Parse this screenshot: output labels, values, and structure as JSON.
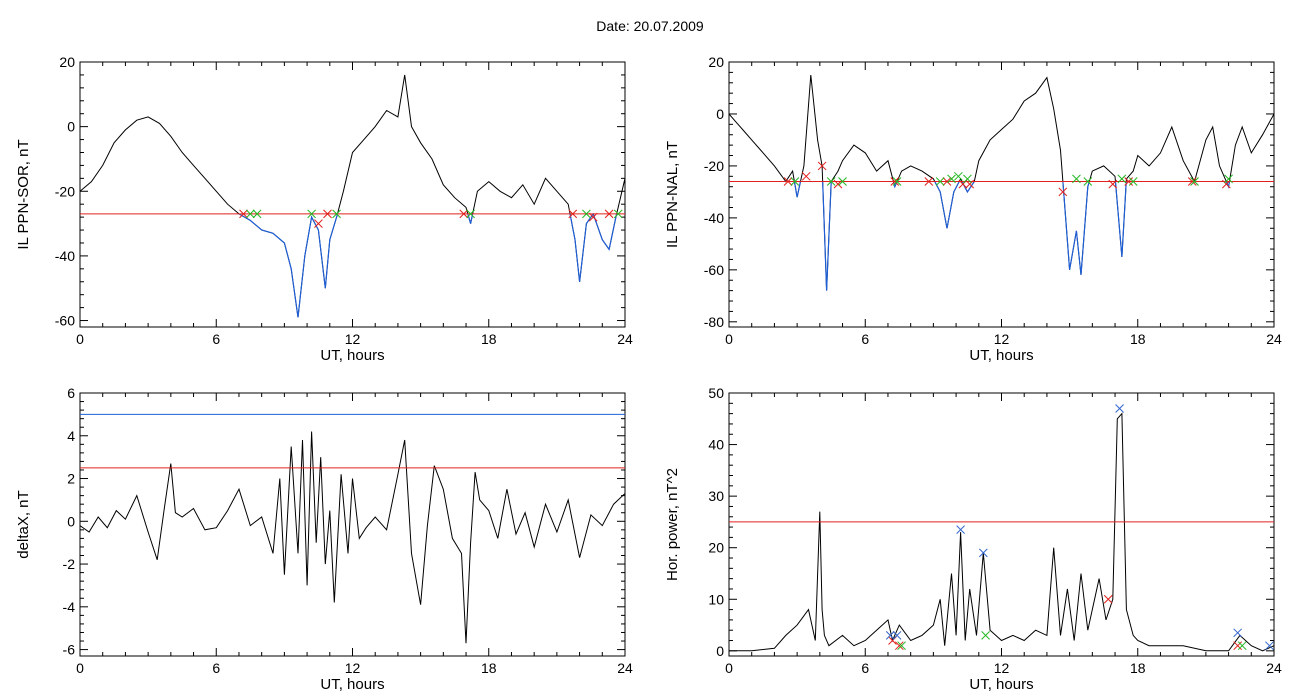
{
  "header": {
    "date_label": "Date:  20.07.2009"
  },
  "colors": {
    "trace": "#000000",
    "below": "#1f5fd6",
    "threshold_red": "#e0201c",
    "threshold_blue": "#1f5fd6",
    "marker_red": "#e0201c",
    "marker_green": "#22b822",
    "marker_blue": "#3366cc"
  },
  "chart_data": [
    {
      "id": "il-ppn-sor",
      "type": "line",
      "xlabel": "UT, hours",
      "ylabel": "IL PPN-SOR, nT",
      "xlim": [
        0,
        24
      ],
      "ylim": [
        -62,
        20
      ],
      "xticks": [
        0,
        6,
        12,
        18,
        24
      ],
      "yticks": [
        -60,
        -40,
        -20,
        0,
        20
      ],
      "threshold_red": -27,
      "series": [
        {
          "x": [
            0,
            0.5,
            1,
            1.5,
            2,
            2.5,
            3,
            3.5,
            4,
            4.5,
            5,
            5.5,
            6,
            6.5,
            7,
            7.5,
            8,
            8.5,
            9,
            9.3,
            9.6,
            9.9,
            10.2,
            10.5,
            10.8,
            11,
            11.3,
            11.6,
            12,
            12.5,
            13,
            13.5,
            14,
            14.3,
            14.6,
            15,
            15.5,
            16,
            16.5,
            17,
            17.2,
            17.5,
            18,
            18.5,
            19,
            19.5,
            20,
            20.5,
            21,
            21.5,
            21.8,
            22,
            22.3,
            22.6,
            23,
            23.3,
            23.6,
            24
          ],
          "y": [
            -20,
            -17,
            -12,
            -5,
            -1,
            2,
            3,
            1,
            -3,
            -8,
            -12,
            -16,
            -20,
            -24,
            -27,
            -29,
            -32,
            -33,
            -36,
            -44,
            -59,
            -40,
            -28,
            -32,
            -50,
            -35,
            -28,
            -20,
            -8,
            -4,
            0,
            5,
            3,
            16,
            0,
            -5,
            -10,
            -18,
            -22,
            -25,
            -30,
            -20,
            -17,
            -20,
            -22,
            -18,
            -24,
            -16,
            -20,
            -24,
            -35,
            -48,
            -30,
            -27,
            -35,
            -38,
            -28,
            -16
          ]
        }
      ],
      "markers_red": [
        [
          7.2,
          -27
        ],
        [
          10.5,
          -30
        ],
        [
          10.9,
          -27
        ],
        [
          16.9,
          -27
        ],
        [
          21.7,
          -27
        ],
        [
          22.6,
          -28
        ],
        [
          23.3,
          -27
        ]
      ],
      "markers_green": [
        [
          7.5,
          -27
        ],
        [
          7.8,
          -27
        ],
        [
          10.2,
          -27
        ],
        [
          11.3,
          -27
        ],
        [
          17.2,
          -27
        ],
        [
          22.3,
          -27
        ],
        [
          23.7,
          -27
        ]
      ]
    },
    {
      "id": "il-ppn-nal",
      "type": "line",
      "xlabel": "UT, hours",
      "ylabel": "IL PPN-NAL, nT",
      "xlim": [
        0,
        24
      ],
      "ylim": [
        -82,
        20
      ],
      "xticks": [
        0,
        6,
        12,
        18,
        24
      ],
      "yticks": [
        -80,
        -60,
        -40,
        -20,
        0,
        20
      ],
      "threshold_red": -26,
      "series": [
        {
          "x": [
            0,
            0.3,
            0.6,
            1,
            1.5,
            2,
            2.5,
            2.8,
            3,
            3.3,
            3.6,
            3.9,
            4.1,
            4.3,
            4.5,
            4.8,
            5,
            5.5,
            6,
            6.5,
            7,
            7.3,
            7.6,
            8,
            8.5,
            9,
            9.3,
            9.6,
            9.9,
            10.2,
            10.5,
            10.8,
            11,
            11.5,
            12,
            12.5,
            13,
            13.5,
            14,
            14.3,
            14.6,
            15,
            15.3,
            15.5,
            15.8,
            16,
            16.5,
            17,
            17.3,
            17.5,
            17.8,
            18,
            18.5,
            19,
            19.5,
            20,
            20.5,
            21,
            21.3,
            21.6,
            22,
            22.3,
            22.6,
            23,
            23.5,
            24
          ],
          "y": [
            0,
            -3,
            -6,
            -10,
            -15,
            -20,
            -26,
            -22,
            -32,
            -20,
            15,
            -10,
            -20,
            -68,
            -26,
            -22,
            -18,
            -12,
            -15,
            -22,
            -18,
            -28,
            -22,
            -20,
            -22,
            -25,
            -30,
            -44,
            -30,
            -25,
            -30,
            -26,
            -18,
            -10,
            -6,
            -2,
            5,
            8,
            14,
            2,
            -14,
            -60,
            -45,
            -62,
            -28,
            -22,
            -20,
            -24,
            -55,
            -25,
            -22,
            -16,
            -20,
            -15,
            -5,
            -18,
            -26,
            -10,
            -5,
            -20,
            -28,
            -12,
            -5,
            -15,
            -8,
            0
          ]
        }
      ],
      "markers_red": [
        [
          2.6,
          -26
        ],
        [
          3.4,
          -24
        ],
        [
          4.1,
          -20
        ],
        [
          4.8,
          -27
        ],
        [
          7.3,
          -26
        ],
        [
          8.8,
          -26
        ],
        [
          9.6,
          -26
        ],
        [
          10.3,
          -27
        ],
        [
          10.6,
          -27
        ],
        [
          14.7,
          -30
        ],
        [
          16.9,
          -27
        ],
        [
          17.6,
          -26
        ],
        [
          20.4,
          -26
        ],
        [
          21.9,
          -27
        ]
      ],
      "markers_green": [
        [
          2.9,
          -26
        ],
        [
          4.5,
          -26
        ],
        [
          5,
          -26
        ],
        [
          7.4,
          -26
        ],
        [
          9.3,
          -26
        ],
        [
          9.8,
          -25
        ],
        [
          10.1,
          -24
        ],
        [
          10.5,
          -25
        ],
        [
          15.3,
          -25
        ],
        [
          15.8,
          -26
        ],
        [
          17.3,
          -25
        ],
        [
          17.8,
          -26
        ],
        [
          20.5,
          -26
        ],
        [
          22,
          -25
        ]
      ]
    },
    {
      "id": "deltax",
      "type": "line",
      "xlabel": "UT, hours",
      "ylabel": "deltaX, nT",
      "xlim": [
        0,
        24
      ],
      "ylim": [
        -6.3,
        6
      ],
      "xticks": [
        0,
        6,
        12,
        18,
        24
      ],
      "yticks": [
        -6,
        -4,
        -2,
        0,
        2,
        4,
        6
      ],
      "threshold_red": 2.5,
      "threshold_blue": 5.0,
      "series": [
        {
          "x": [
            0,
            0.4,
            0.8,
            1.2,
            1.6,
            2,
            2.5,
            3,
            3.4,
            3.7,
            4,
            4.2,
            4.5,
            5,
            5.5,
            6,
            6.5,
            7,
            7.5,
            8,
            8.5,
            8.8,
            9,
            9.3,
            9.6,
            9.8,
            10,
            10.2,
            10.4,
            10.6,
            10.8,
            11,
            11.2,
            11.5,
            11.8,
            12,
            12.3,
            12.6,
            13,
            13.5,
            14,
            14.3,
            14.6,
            15,
            15.3,
            15.6,
            16,
            16.4,
            16.8,
            17,
            17.2,
            17.4,
            17.6,
            18,
            18.4,
            18.8,
            19.2,
            19.6,
            20,
            20.5,
            21,
            21.5,
            22,
            22.5,
            23,
            23.5,
            24
          ],
          "y": [
            -0.2,
            -0.5,
            0.2,
            -0.3,
            0.5,
            0.1,
            1.2,
            -0.5,
            -1.8,
            0.5,
            2.7,
            0.4,
            0.2,
            0.6,
            -0.4,
            -0.3,
            0.5,
            1.5,
            -0.2,
            0.2,
            -1.5,
            2.0,
            -2.5,
            3.5,
            -1.5,
            3.8,
            -3.0,
            4.2,
            -1.0,
            3.0,
            -2.0,
            0.5,
            -3.8,
            2.2,
            -1.5,
            2.0,
            -0.8,
            -0.3,
            0.2,
            -0.4,
            2.2,
            3.8,
            -1.5,
            -3.9,
            -0.2,
            2.6,
            1.5,
            -0.8,
            -1.5,
            -5.7,
            -1.0,
            2.3,
            1.0,
            0.5,
            -0.8,
            1.5,
            -0.6,
            0.4,
            -1.2,
            0.8,
            -0.5,
            1.0,
            -1.7,
            0.3,
            -0.2,
            0.8,
            1.3
          ]
        }
      ],
      "markers_red": [],
      "markers_green": []
    },
    {
      "id": "hor-power",
      "type": "line",
      "xlabel": "UT, hours",
      "ylabel": "Hor. power, nT^2",
      "xlim": [
        0,
        24
      ],
      "ylim": [
        -1,
        50
      ],
      "xticks": [
        0,
        6,
        12,
        18,
        24
      ],
      "yticks": [
        0,
        10,
        20,
        30,
        40,
        50
      ],
      "threshold_red": 25,
      "series": [
        {
          "x": [
            0,
            1,
            2,
            2.5,
            3,
            3.5,
            3.8,
            4,
            4.1,
            4.2,
            4.4,
            5,
            5.5,
            6,
            6.5,
            7,
            7.2,
            7.5,
            8,
            8.5,
            9,
            9.3,
            9.5,
            9.8,
            10,
            10.2,
            10.4,
            10.6,
            10.9,
            11.2,
            11.5,
            12,
            12.5,
            13,
            13.5,
            14,
            14.3,
            14.6,
            14.9,
            15.2,
            15.5,
            15.8,
            16,
            16.3,
            16.6,
            16.9,
            17.1,
            17.3,
            17.5,
            17.8,
            18,
            18.5,
            19,
            20,
            21,
            22,
            22.5,
            23,
            23.5,
            24
          ],
          "y": [
            0,
            0,
            0.5,
            3,
            5,
            8,
            2,
            27,
            8,
            3,
            1,
            3,
            1,
            2,
            4,
            6,
            2,
            5,
            2,
            3,
            5,
            10,
            1,
            15,
            3,
            23,
            2,
            12,
            3,
            19,
            4,
            2,
            3,
            2,
            4,
            3,
            20,
            3,
            12,
            2,
            15,
            4,
            8,
            14,
            6,
            10,
            45,
            46,
            8,
            3,
            2,
            1,
            1,
            1,
            0,
            0,
            3,
            1,
            0,
            1
          ]
        }
      ],
      "markers_red": [
        [
          7.2,
          2
        ],
        [
          7.5,
          1
        ],
        [
          16.7,
          10
        ],
        [
          22.4,
          1
        ]
      ],
      "markers_green": [
        [
          7.6,
          1
        ],
        [
          11.3,
          3
        ],
        [
          22.6,
          1
        ]
      ],
      "markers_blue": [
        [
          7.1,
          3
        ],
        [
          7.4,
          3
        ],
        [
          10.2,
          23.5
        ],
        [
          11.2,
          19
        ],
        [
          17.2,
          47
        ],
        [
          22.4,
          3.5
        ],
        [
          23.8,
          1
        ]
      ]
    }
  ]
}
